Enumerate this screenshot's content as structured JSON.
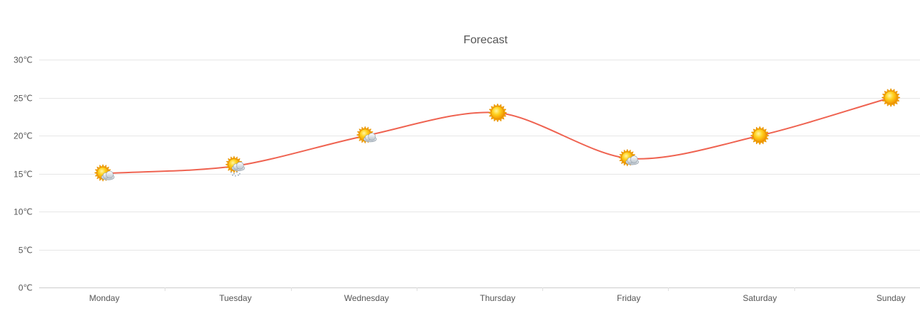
{
  "chart_data": {
    "type": "line",
    "title": "Forecast",
    "xlabel": "",
    "ylabel": "",
    "categories": [
      "Monday",
      "Tuesday",
      "Wednesday",
      "Thursday",
      "Friday",
      "Saturday",
      "Sunday"
    ],
    "series": [
      {
        "values": [
          15,
          16,
          20,
          23,
          17,
          20,
          25
        ],
        "color": "#ef6351"
      }
    ],
    "markers": [
      "partly-cloudy-icon",
      "cloudy-snow-icon",
      "partly-cloudy-icon",
      "sun-icon",
      "partly-cloudy-icon",
      "sun-icon",
      "sun-icon"
    ],
    "ylim": [
      0,
      30
    ],
    "yticks": [
      0,
      5,
      10,
      15,
      20,
      25,
      30
    ],
    "ytick_labels": [
      "0℃",
      "5℃",
      "10℃",
      "15℃",
      "20℃",
      "25℃",
      "30℃"
    ],
    "grid": true,
    "legend": "none"
  }
}
